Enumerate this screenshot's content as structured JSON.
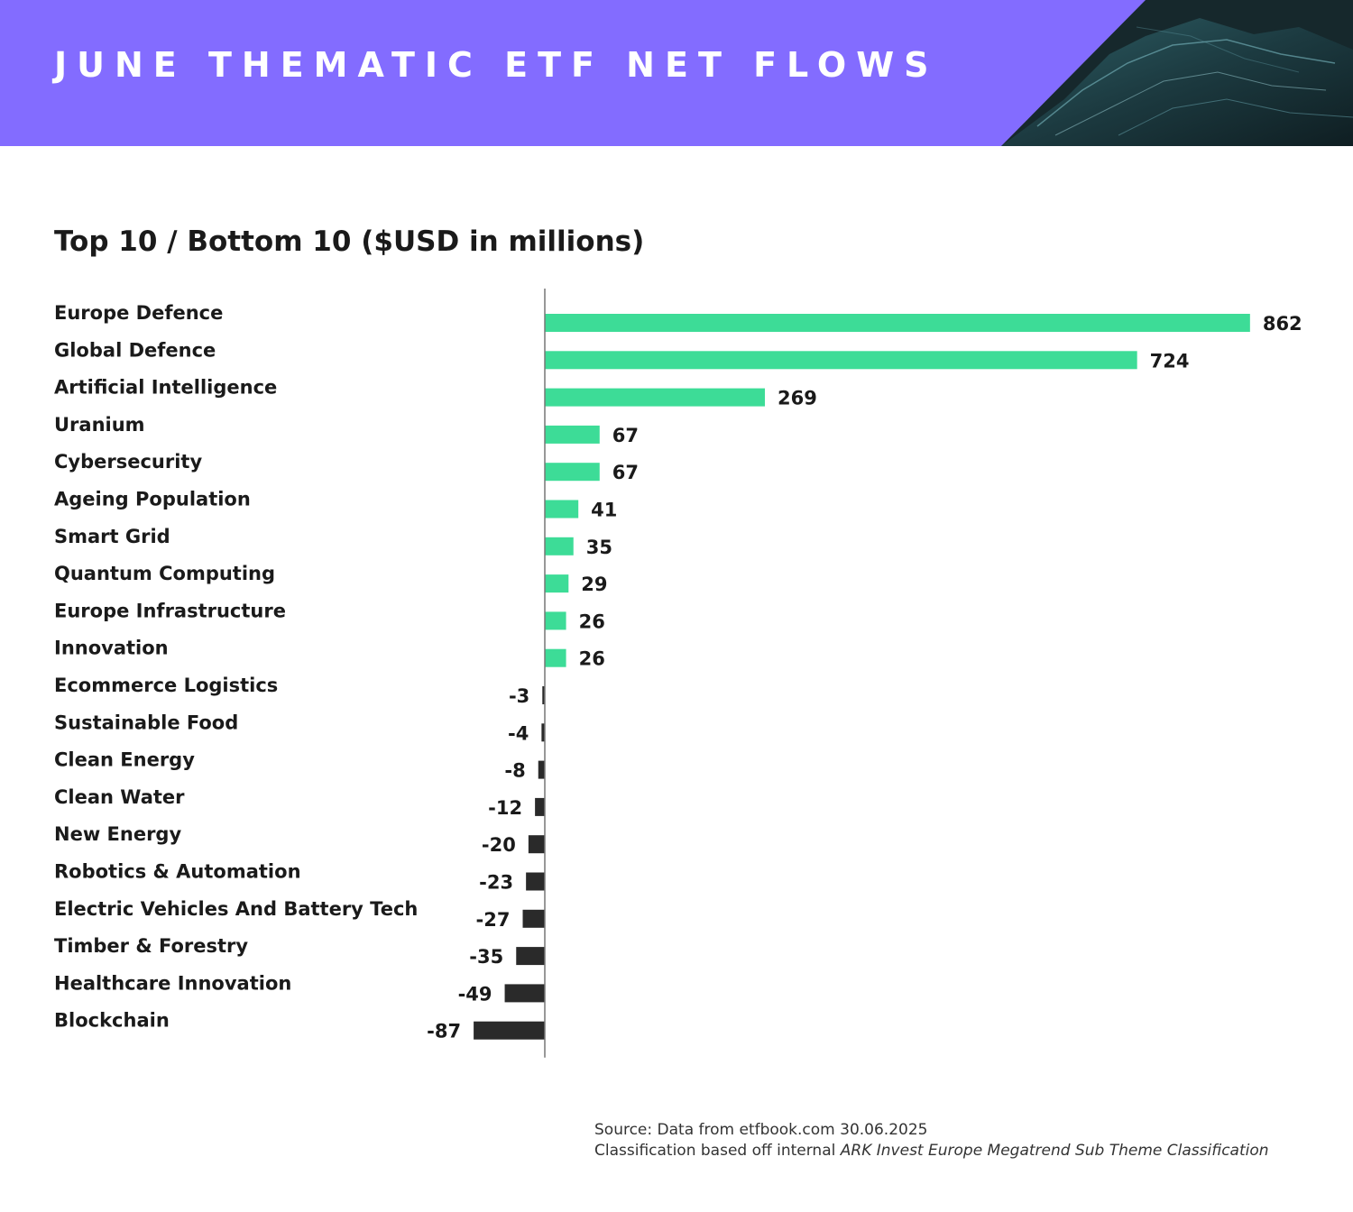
{
  "header": {
    "title": "JUNE THEMATIC ETF NET FLOWS"
  },
  "colors": {
    "banner": "#836cff",
    "positive": "#3ddc97",
    "negative": "#2a2a2a",
    "axis": "#777777"
  },
  "chart_data": {
    "type": "bar",
    "orientation": "horizontal",
    "title": "Top 10 / Bottom 10 ($USD in millions)",
    "categories": [
      "Europe Defence",
      "Global Defence",
      "Artificial Intelligence",
      "Uranium",
      "Cybersecurity",
      "Ageing Population",
      "Smart Grid",
      "Quantum Computing",
      "Europe Infrastructure",
      "Innovation",
      "Ecommerce Logistics",
      "Sustainable Food",
      "Clean Energy",
      "Clean Water",
      "New Energy",
      "Robotics & Automation",
      "Electric Vehicles And Battery Tech",
      "Timber & Forestry",
      "Healthcare Innovation",
      "Blockchain"
    ],
    "values": [
      862,
      724,
      269,
      67,
      67,
      41,
      35,
      29,
      26,
      26,
      -3,
      -4,
      -8,
      -12,
      -20,
      -23,
      -27,
      -35,
      -49,
      -87
    ],
    "grid": false,
    "legend": "none"
  },
  "footer": {
    "source": "Source: Data from etfbook.com 30.06.2025",
    "classification_prefix": "Classification based off internal ",
    "classification_name": "ARK Invest Europe Megatrend Sub Theme Classification"
  }
}
